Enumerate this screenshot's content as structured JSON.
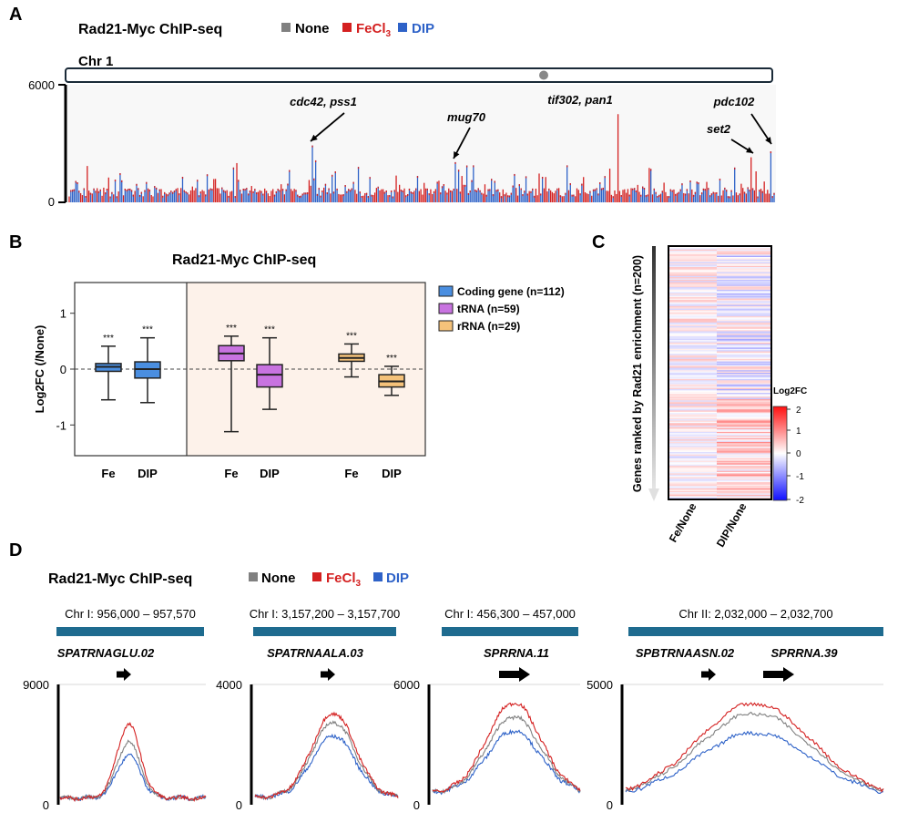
{
  "colors": {
    "none": "#808080",
    "fe": "#d42020",
    "dip": "#2e62c8",
    "coding": "#4a8ee0",
    "trna": "#c873e0",
    "rrna": "#f5c27a",
    "track": "#1e6b8f",
    "shade": "#fdf2ea"
  },
  "panel_a": {
    "label": "A",
    "title": "Rad21-Myc ChIP-seq",
    "legend": [
      {
        "key": "none",
        "text": "None"
      },
      {
        "key": "fe",
        "text": "FeCl",
        "sub": "3"
      },
      {
        "key": "dip",
        "text": "DIP"
      }
    ],
    "chrom_label": "Chr 1",
    "y_ticks": [
      "6000",
      "0"
    ],
    "ylim": [
      0,
      6000
    ],
    "peaks": [
      {
        "text": "cdc42, pss1",
        "pos": 0.345,
        "value": 2900
      },
      {
        "text": "mug70",
        "pos": 0.548,
        "value": 2050
      },
      {
        "text": "tif302, pan1",
        "pos": 0.778,
        "value": 4500
      },
      {
        "text": "set2",
        "pos": 0.967,
        "value": 2300
      },
      {
        "text": "pdc102",
        "pos": 0.995,
        "value": 2600
      }
    ]
  },
  "chart_data": [
    {
      "id": "panel_b",
      "type": "box",
      "label": "B",
      "title": "Rad21-Myc ChIP-seq",
      "ylabel": "Log2FC (/None)",
      "ylim": [
        -1.55,
        1.55
      ],
      "y_ticks": [
        "1",
        "0",
        "-1"
      ],
      "x_labels": [
        "Fe",
        "DIP",
        "Fe",
        "DIP",
        "Fe",
        "DIP"
      ],
      "legend": [
        "Coding gene (n=112)",
        "tRNA (n=59)",
        "rRNA (n=29)"
      ],
      "significance": "***",
      "boxes": [
        {
          "group": "coding",
          "label": "Fe",
          "min": -0.55,
          "q1": -0.04,
          "median": 0.04,
          "q3": 0.1,
          "max": 0.41
        },
        {
          "group": "coding",
          "label": "DIP",
          "min": -0.6,
          "q1": -0.16,
          "median": 0.0,
          "q3": 0.13,
          "max": 0.56
        },
        {
          "group": "trna",
          "label": "Fe",
          "min": -1.12,
          "q1": 0.15,
          "median": 0.28,
          "q3": 0.42,
          "max": 0.59
        },
        {
          "group": "trna",
          "label": "DIP",
          "min": -0.72,
          "q1": -0.32,
          "median": -0.1,
          "q3": 0.08,
          "max": 0.56
        },
        {
          "group": "rrna",
          "label": "Fe",
          "min": -0.14,
          "q1": 0.14,
          "median": 0.2,
          "q3": 0.27,
          "max": 0.45
        },
        {
          "group": "rrna",
          "label": "DIP",
          "min": -0.47,
          "q1": -0.32,
          "median": -0.22,
          "q3": -0.1,
          "max": 0.05
        }
      ]
    },
    {
      "id": "panel_c",
      "type": "heatmap",
      "label": "C",
      "ylabel": "Genes ranked by Rad21 enrichment (n=200)",
      "columns": [
        "Fe/None",
        "DIP/None"
      ],
      "rows": 200,
      "colorbar_title": "Log2FC",
      "colorbar_ticks": [
        "2",
        "1",
        "0",
        "-1",
        "-2"
      ],
      "range": [
        -2,
        2
      ]
    },
    {
      "id": "panel_d",
      "type": "line",
      "label": "D",
      "title": "Rad21-Myc ChIP-seq",
      "series_names": [
        "None",
        "FeCl3",
        "DIP"
      ],
      "legend": [
        {
          "key": "none",
          "text": "None"
        },
        {
          "key": "fe",
          "text": "FeCl",
          "sub": "3"
        },
        {
          "key": "dip",
          "text": "DIP"
        }
      ],
      "tracks": [
        {
          "region": "Chr I: 956,000 – 957,570",
          "ymax_label": "9000",
          "ymax": 9000,
          "genes": [
            {
              "name": "SPATRNAGLU.02",
              "arrow": "small"
            }
          ],
          "peak": {
            "center": 0.47,
            "width": 0.08,
            "fe": 6000,
            "none": 4700,
            "dip": 3700,
            "base": 500
          }
        },
        {
          "region": "Chr I: 3,157,200 – 3,157,700",
          "ymax_label": "4000",
          "ymax": 4000,
          "genes": [
            {
              "name": "SPATRNAALA.03",
              "arrow": "small"
            }
          ],
          "peak": {
            "center": 0.55,
            "width": 0.15,
            "fe": 3050,
            "none": 2750,
            "dip": 2300,
            "base": 250
          }
        },
        {
          "region": "Chr I: 456,300 – 457,000",
          "ymax_label": "6000",
          "ymax": 6000,
          "genes": [
            {
              "name": "SPRRNA.11",
              "arrow": "large"
            }
          ],
          "peak": {
            "center": 0.55,
            "width": 0.18,
            "fe": 5100,
            "none": 4400,
            "dip": 3700,
            "base": 600
          }
        },
        {
          "region": "Chr II: 2,032,000 – 2,032,700",
          "ymax_label": "5000",
          "ymax": 5000,
          "genes": [
            {
              "name": "SPBTRNAASN.02",
              "arrow": "small"
            },
            {
              "name": "SPRRNA.39",
              "arrow": "large"
            }
          ],
          "peak": {
            "center": 0.5,
            "width": 0.22,
            "fe": 4200,
            "none": 3800,
            "dip": 3000,
            "base": 350
          }
        }
      ],
      "y_zero": "0"
    }
  ]
}
